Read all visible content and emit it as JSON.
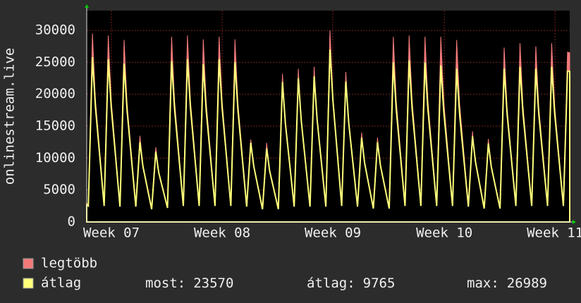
{
  "chart_data": {
    "type": "area",
    "y_label": "onlinestream.live",
    "x": [
      0,
      0.1,
      0.36,
      0.55,
      1.1,
      1.36,
      1.55,
      2.1,
      2.36,
      2.55,
      3.1,
      3.36,
      3.55,
      4.1,
      4.36,
      4.55,
      5.1,
      5.36,
      5.55,
      6.1,
      6.36,
      6.55,
      7.1,
      7.36,
      7.55,
      8.1,
      8.36,
      8.55,
      9.1,
      9.36,
      9.55,
      10.1,
      10.36,
      10.55,
      11.1,
      11.36,
      11.55,
      12.1,
      12.36,
      12.55,
      13.1,
      13.36,
      13.55,
      14.1,
      14.36,
      14.55,
      15.1,
      15.36,
      15.55,
      16.1,
      16.36,
      16.55,
      17.1,
      17.36,
      17.55,
      18.1,
      18.36,
      18.55,
      19.1,
      19.36,
      19.55,
      20.1,
      20.36,
      20.55,
      21.1,
      21.36,
      21.55,
      22.1,
      22.36,
      22.55,
      23.1,
      23.36,
      23.55,
      24.1,
      24.36,
      24.55,
      25.1,
      25.36,
      25.55,
      26.1,
      26.36,
      26.55,
      27.1,
      27.36,
      27.55,
      28.1,
      28.36,
      28.55,
      29.1,
      29.36,
      29.55,
      30.1,
      30.36,
      30.5
    ],
    "series": [
      {
        "name": "legtöbb",
        "color": "#f47a7a",
        "values": [
          2900,
          2800,
          29500,
          19200,
          2700,
          29200,
          19000,
          2700,
          28500,
          18500,
          2600,
          13500,
          8800,
          2200,
          11700,
          7600,
          2400,
          29000,
          18900,
          2700,
          29200,
          19000,
          2700,
          28600,
          18600,
          2700,
          29000,
          18900,
          2700,
          28600,
          18600,
          2600,
          12900,
          8400,
          2200,
          12400,
          8100,
          2200,
          23200,
          15100,
          2600,
          24000,
          15600,
          2600,
          24300,
          15800,
          2600,
          30000,
          19500,
          2700,
          23500,
          15300,
          2600,
          14000,
          9100,
          2300,
          13200,
          8600,
          2300,
          29000,
          18900,
          2700,
          29200,
          19000,
          2700,
          29000,
          18900,
          2700,
          29000,
          18900,
          2700,
          28500,
          18500,
          2600,
          14200,
          9200,
          2300,
          13000,
          8500,
          2300,
          27300,
          17700,
          2700,
          28000,
          18200,
          2700,
          27500,
          17900,
          2700,
          28000,
          18200,
          2700,
          26600,
          26500
        ]
      },
      {
        "name": "átlag",
        "color": "#ffff7a",
        "values": [
          2700,
          2500,
          25800,
          18000,
          2500,
          25500,
          17900,
          2400,
          24800,
          17400,
          2400,
          12500,
          8700,
          2000,
          11000,
          7700,
          2200,
          25200,
          17600,
          2500,
          25500,
          17900,
          2500,
          24700,
          17300,
          2500,
          25500,
          17900,
          2500,
          25000,
          17500,
          2400,
          12400,
          8700,
          2000,
          11500,
          8000,
          2000,
          21900,
          15300,
          2400,
          22500,
          15800,
          2400,
          22800,
          16000,
          2400,
          27000,
          18900,
          2500,
          22000,
          15400,
          2400,
          13200,
          9200,
          2100,
          12500,
          8800,
          2100,
          25000,
          17500,
          2500,
          25300,
          17700,
          2500,
          25000,
          17500,
          2500,
          24500,
          17200,
          2500,
          24000,
          16800,
          2400,
          13400,
          9400,
          2100,
          12300,
          8600,
          2100,
          24000,
          16800,
          2500,
          24300,
          17000,
          2500,
          24000,
          16800,
          2500,
          24300,
          17000,
          2500,
          23600,
          23570
        ]
      }
    ],
    "xlim": [
      0,
      30.5
    ],
    "xticks": [
      {
        "value": 1.56,
        "label": "Week 07"
      },
      {
        "value": 8.55,
        "label": "Week 08"
      },
      {
        "value": 15.54,
        "label": "Week 09"
      },
      {
        "value": 22.58,
        "label": "Week 10"
      },
      {
        "value": 29.57,
        "label": "Week 11"
      }
    ],
    "ylim": [
      0,
      33100
    ],
    "yticks": [
      0,
      5000,
      10000,
      15000,
      20000,
      25000,
      30000
    ],
    "grid": true,
    "legend_stats": [
      {
        "label": "most:",
        "value": 23570
      },
      {
        "label": "átlag:",
        "value": 9765
      },
      {
        "label": "max:",
        "value": 26989
      }
    ]
  }
}
